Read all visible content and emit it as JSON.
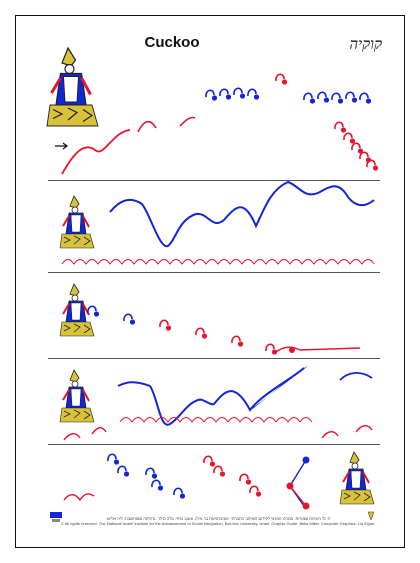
{
  "page": {
    "title_en": "Cuckoo",
    "title_he": "קוקיה",
    "copyright_he": "© כל הזכויות שמורות. המרכז הארצי לקידום השילוב החברתי, אוניברסיטת בר-אילן. עיצוב גרפי: בלה מילר. גרפיקה ממוחשבת: ליה אליעז.",
    "copyright_en": "© All rights reserved. The National Israeli Institute for the Advancement of Social Integration, Bar-Ilan University, Israel. Graphic Guide: Bella Miller. Computer Graphics: Lia Elyaz."
  },
  "colors": {
    "red": "#e8142c",
    "blue": "#1226d8",
    "gold": "#d8c23a",
    "divider": "#555555"
  },
  "icons": [
    "cuckoo-figure-icon",
    "arrow-right-icon",
    "logo-icon"
  ]
}
